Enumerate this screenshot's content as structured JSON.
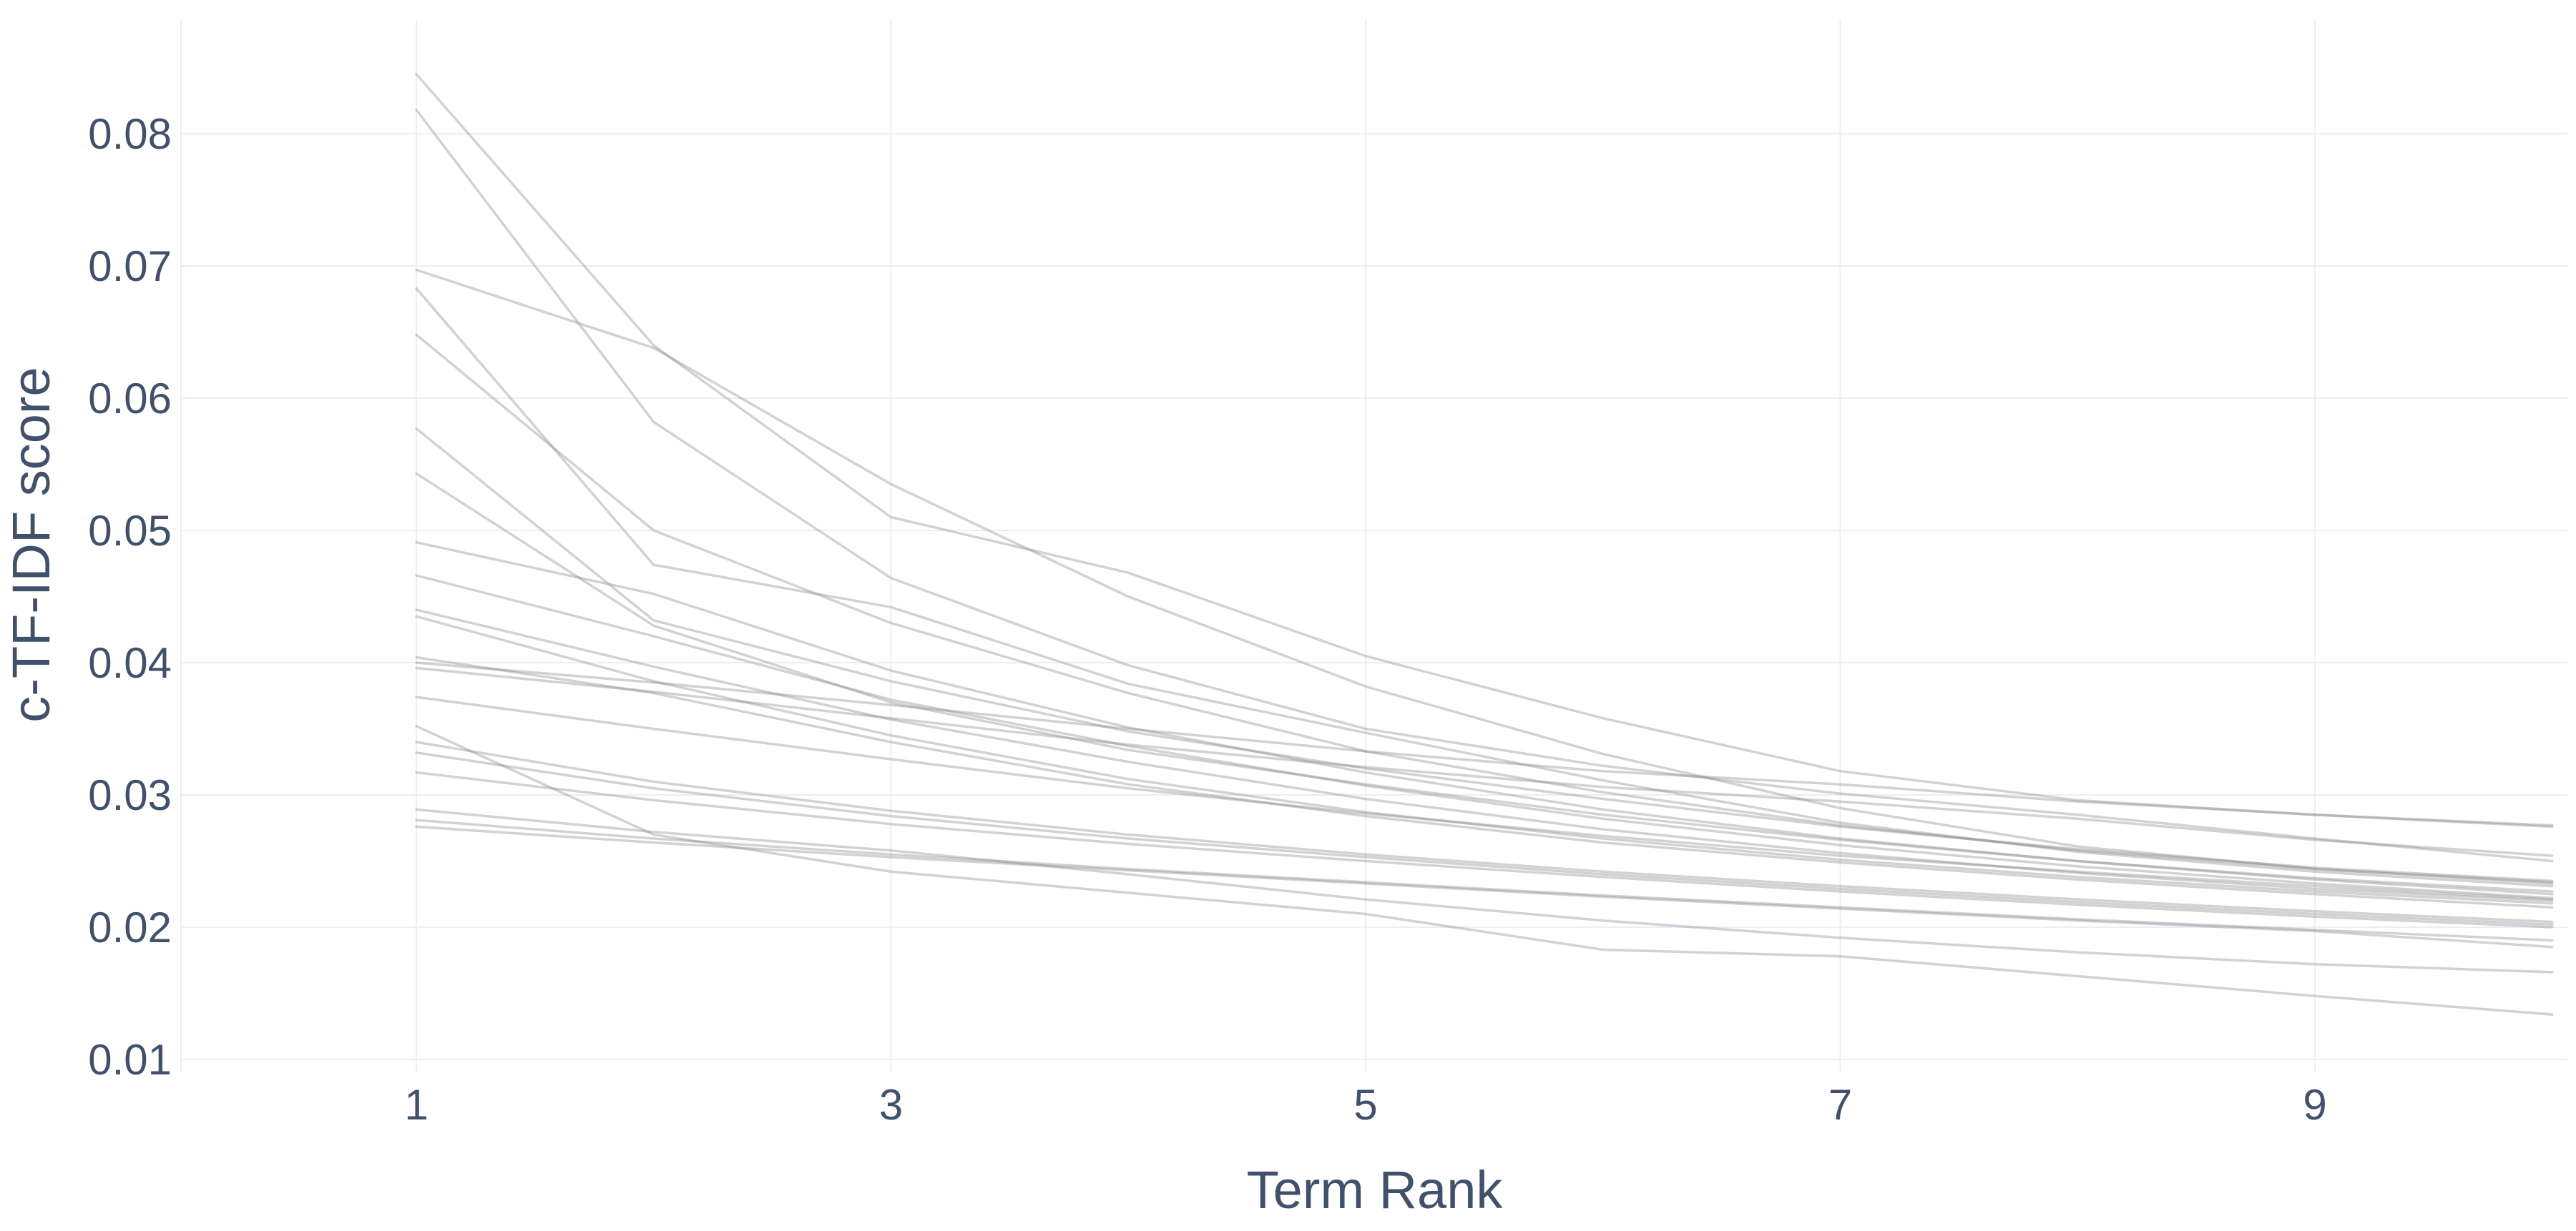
{
  "page": {
    "background_color": "#ffffff",
    "description": "Term score decline line chart (c-TF-IDF score per term rank, one line per topic)"
  },
  "chart_data": {
    "type": "line",
    "title": "",
    "xlabel": "Term Rank",
    "ylabel": "c-TF-IDF score",
    "legend": false,
    "grid": true,
    "x": [
      1,
      2,
      3,
      4,
      5,
      6,
      7,
      8,
      9,
      10
    ],
    "x_tick_values": [
      1,
      3,
      5,
      7,
      9
    ],
    "x_tick_labels": [
      "1",
      "3",
      "5",
      "7",
      "9"
    ],
    "y_tick_values": [
      0.01,
      0.02,
      0.03,
      0.04,
      0.05,
      0.06,
      0.07,
      0.08
    ],
    "y_tick_labels": [
      "0.01",
      "0.02",
      "0.03",
      "0.04",
      "0.05",
      "0.06",
      "0.07",
      "0.08"
    ],
    "xlim": [
      0.01,
      10.07
    ],
    "ylim": [
      0.009,
      0.0886
    ],
    "line_color": "#8a8a8a",
    "line_opacity": 0.38,
    "line_width": 3.5,
    "grid_color": "#e9eef8",
    "axis_label_color": "#41506b",
    "series": [
      {
        "name": "line-1",
        "values": [
          0.0845,
          0.064,
          0.051,
          0.0468,
          0.0405,
          0.0358,
          0.0318,
          0.0296,
          0.0285,
          0.0277
        ]
      },
      {
        "name": "line-2",
        "values": [
          0.0818,
          0.0582,
          0.0464,
          0.0398,
          0.035,
          0.0322,
          0.0301,
          0.0285,
          0.0267,
          0.025
        ]
      },
      {
        "name": "line-3",
        "values": [
          0.0697,
          0.0638,
          0.0535,
          0.045,
          0.0382,
          0.0331,
          0.029,
          0.0261,
          0.0244,
          0.0233
        ]
      },
      {
        "name": "line-4",
        "values": [
          0.0683,
          0.0474,
          0.0442,
          0.0384,
          0.0347,
          0.0311,
          0.0279,
          0.0257,
          0.0242,
          0.0231
        ]
      },
      {
        "name": "line-5",
        "values": [
          0.0648,
          0.05,
          0.043,
          0.0377,
          0.0333,
          0.0302,
          0.0277,
          0.0258,
          0.0244,
          0.0234
        ]
      },
      {
        "name": "line-6",
        "values": [
          0.0577,
          0.0432,
          0.0386,
          0.0348,
          0.032,
          0.0297,
          0.0276,
          0.0259,
          0.0245,
          0.0235
        ]
      },
      {
        "name": "line-7",
        "values": [
          0.0543,
          0.0428,
          0.037,
          0.0334,
          0.0308,
          0.0285,
          0.0266,
          0.025,
          0.0237,
          0.0227
        ]
      },
      {
        "name": "line-8",
        "values": [
          0.0491,
          0.0452,
          0.0394,
          0.0351,
          0.0317,
          0.0289,
          0.0267,
          0.025,
          0.0236,
          0.0225
        ]
      },
      {
        "name": "line-9",
        "values": [
          0.0466,
          0.042,
          0.0372,
          0.0337,
          0.0307,
          0.0282,
          0.0262,
          0.0246,
          0.0233,
          0.0222
        ]
      },
      {
        "name": "line-10",
        "values": [
          0.044,
          0.0397,
          0.0357,
          0.0325,
          0.0297,
          0.0274,
          0.0256,
          0.0241,
          0.0229,
          0.022
        ]
      },
      {
        "name": "line-11",
        "values": [
          0.0435,
          0.0386,
          0.0345,
          0.0312,
          0.0287,
          0.0267,
          0.0251,
          0.0238,
          0.0227,
          0.0218
        ]
      },
      {
        "name": "line-12",
        "values": [
          0.0404,
          0.0377,
          0.034,
          0.0308,
          0.0284,
          0.0264,
          0.0249,
          0.0236,
          0.0225,
          0.0215
        ]
      },
      {
        "name": "line-13",
        "values": [
          0.04,
          0.0385,
          0.0368,
          0.035,
          0.0333,
          0.0318,
          0.0308,
          0.0295,
          0.0285,
          0.0276
        ]
      },
      {
        "name": "line-14",
        "values": [
          0.0396,
          0.0378,
          0.0358,
          0.0338,
          0.0321,
          0.0306,
          0.0295,
          0.0282,
          0.0266,
          0.0254
        ]
      },
      {
        "name": "line-15",
        "values": [
          0.0374,
          0.035,
          0.0327,
          0.0305,
          0.0286,
          0.0269,
          0.0254,
          0.0242,
          0.0231,
          0.0221
        ]
      },
      {
        "name": "line-16",
        "values": [
          0.0352,
          0.027,
          0.0242,
          0.0226,
          0.021,
          0.0183,
          0.0178,
          0.0163,
          0.0148,
          0.0134
        ]
      },
      {
        "name": "line-17",
        "values": [
          0.034,
          0.031,
          0.0288,
          0.027,
          0.0255,
          0.0242,
          0.0231,
          0.0221,
          0.0212,
          0.0204
        ]
      },
      {
        "name": "line-18",
        "values": [
          0.0332,
          0.0305,
          0.0284,
          0.0267,
          0.0253,
          0.024,
          0.0229,
          0.0219,
          0.021,
          0.0202
        ]
      },
      {
        "name": "line-19",
        "values": [
          0.0317,
          0.0296,
          0.0278,
          0.0263,
          0.025,
          0.0238,
          0.0227,
          0.0217,
          0.0208,
          0.02
        ]
      },
      {
        "name": "line-20",
        "values": [
          0.0289,
          0.0272,
          0.0258,
          0.024,
          0.0221,
          0.0205,
          0.0192,
          0.0181,
          0.0172,
          0.0166
        ]
      },
      {
        "name": "line-21",
        "values": [
          0.0281,
          0.0267,
          0.0255,
          0.0244,
          0.0234,
          0.0224,
          0.0215,
          0.0206,
          0.0198,
          0.019
        ]
      },
      {
        "name": "line-22",
        "values": [
          0.0276,
          0.0264,
          0.0253,
          0.0243,
          0.0233,
          0.0223,
          0.0214,
          0.0205,
          0.0197,
          0.0185
        ]
      }
    ]
  }
}
